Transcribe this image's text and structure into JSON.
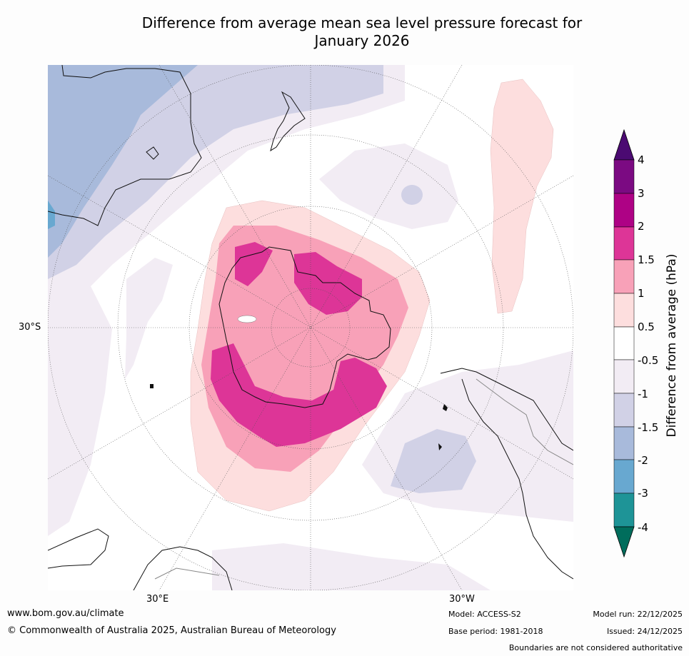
{
  "title_line1": "Difference from average mean sea level pressure forecast for",
  "title_line2": "January 2026",
  "map": {
    "projection": "south-polar-stereographic",
    "lat_label": "30°S",
    "lon_labels": {
      "east": "30°E",
      "west": "30°W"
    },
    "pressure_anomaly_regions": [
      {
        "area": "Antarctic interior",
        "category": "1 to 1.5"
      },
      {
        "area": "Antarctic coastal belt (Amundsen-Bellingshausen, East Antarctica)",
        "category": "1.5 to 2"
      },
      {
        "area": "Southern Ocean ring around Antarctica",
        "category": "0.5 to 1"
      },
      {
        "area": "Australia / Tasman region",
        "category": "-2 to -1.5"
      },
      {
        "area": "South Atlantic near South America",
        "category": "-1.5 to -1"
      },
      {
        "area": "Southeast Pacific elongated band",
        "category": "0.5 to 1"
      }
    ]
  },
  "colorbar": {
    "title": "Difference from average (hPa)",
    "tick_labels": [
      "4",
      "3",
      "2",
      "1.5",
      "1",
      "0.5",
      "-0.5",
      "-1",
      "-1.5",
      "-2",
      "-3",
      "-4"
    ],
    "bins": [
      {
        "range": "above 4",
        "color": "#4b0a72"
      },
      {
        "range": "3 to 4",
        "color": "#7b0a82"
      },
      {
        "range": "2 to 3",
        "color": "#ae0285"
      },
      {
        "range": "1.5 to 2",
        "color": "#dd3597"
      },
      {
        "range": "1 to 1.5",
        "color": "#f8a1b8"
      },
      {
        "range": "0.5 to 1",
        "color": "#fddede"
      },
      {
        "range": "-0.5 to 0.5",
        "color": "#ffffff"
      },
      {
        "range": "-1 to -0.5",
        "color": "#f2ecf4"
      },
      {
        "range": "-1.5 to -1",
        "color": "#d1d1e6"
      },
      {
        "range": "-2 to -1.5",
        "color": "#a8badb"
      },
      {
        "range": "-3 to -2",
        "color": "#68a8d0"
      },
      {
        "range": "-4 to -3",
        "color": "#1e9497"
      },
      {
        "range": "below -4",
        "color": "#006d5c"
      }
    ]
  },
  "footer": {
    "url": "www.bom.gov.au/climate",
    "copyright": "© Commonwealth of Australia 2025, Australian Bureau of Meteorology",
    "model": "Model: ACCESS-S2",
    "base_period": "Base period: 1981-2018",
    "model_run": "Model run: 22/12/2025",
    "issued": "Issued: 24/12/2025",
    "disclaimer": "Boundaries are not considered authoritative"
  }
}
